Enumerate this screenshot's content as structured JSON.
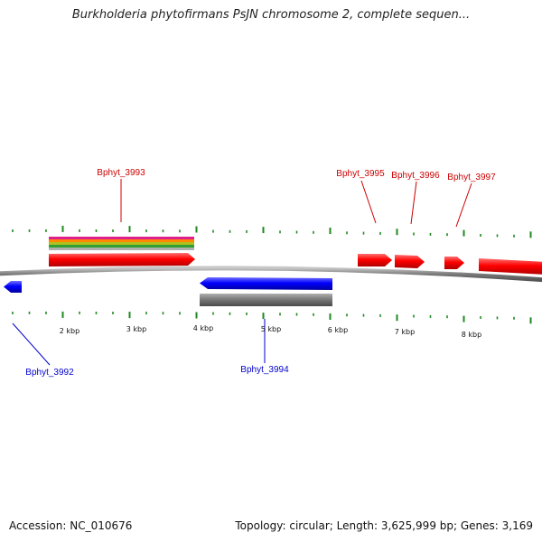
{
  "title": "Burkholderia phytofirmans PsJN chromosome 2, complete sequen...",
  "footer": {
    "accession": "Accession: NC_010676",
    "summary": "Topology: circular; Length: 3,625,999 bp; Genes: 3,169"
  },
  "ruler": {
    "unit": "kbp",
    "labels": [
      "2 kbp",
      "3 kbp",
      "4 kbp",
      "5 kbp",
      "6 kbp",
      "7 kbp",
      "8 kbp"
    ]
  },
  "genes": [
    {
      "id": "Bphyt_3992",
      "strand": "-",
      "color": "#0000ff"
    },
    {
      "id": "Bphyt_3993",
      "strand": "+",
      "color": "#ff0000"
    },
    {
      "id": "Bphyt_3994",
      "strand": "-",
      "color": "#0000ff"
    },
    {
      "id": "Bphyt_3995",
      "strand": "+",
      "color": "#ff0000"
    },
    {
      "id": "Bphyt_3996",
      "strand": "+",
      "color": "#ff0000"
    },
    {
      "id": "Bphyt_3997",
      "strand": "+",
      "color": "#ff0000"
    }
  ],
  "colors": {
    "backbone": "#8a8a8a",
    "tick": "#1f8a1f",
    "forward": "#ff0000",
    "reverse": "#0000ff",
    "feature_grey": "#808080",
    "stripes": [
      "#e0208a",
      "#ff8800",
      "#b0c020",
      "#30a030",
      "#b0b0b0"
    ]
  }
}
